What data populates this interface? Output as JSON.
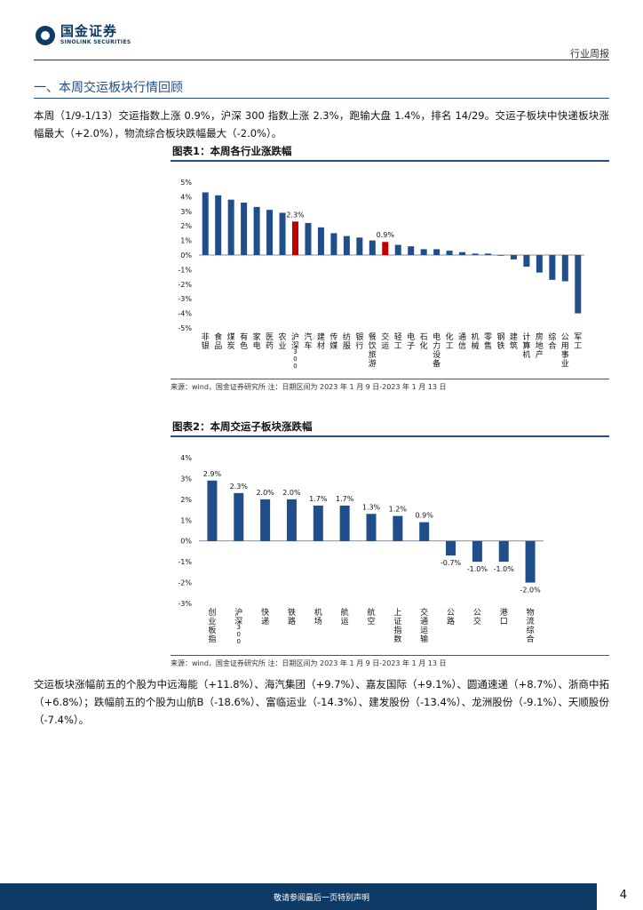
{
  "header": {
    "logo_cn": "国金证券",
    "logo_en": "SINOLINK SECURITIES",
    "doc_type": "行业周报"
  },
  "section": {
    "title": "一、本周交运板块行情回顾"
  },
  "paragraphs": {
    "p1": "本周（1/9-1/13）交运指数上涨 0.9%，沪深 300 指数上涨 2.3%，跑输大盘 1.4%，排名 14/29。交运子板块中快递板块涨幅最大（+2.0%），物流综合板块跌幅最大（-2.0%）。",
    "p2": "交运板块涨幅前五的个股为中远海能（+11.8%）、海汽集团（+9.7%）、嘉友国际（+9.1%）、圆通速递（+8.7%）、浙商中拓（+6.8%）；跌幅前五的个股为山航B（-18.6%）、富临运业（-14.3%）、建发股份（-13.4%）、龙洲股份（-9.1%）、天顺股份（-7.4%）。"
  },
  "figure1": {
    "title": "图表1：本周各行业涨跌幅",
    "source": "来源：wind，国金证券研究所   注：日期区间为 2023 年 1 月 9 日-2023 年 1 月 13 日"
  },
  "figure2": {
    "title": "图表2：本周交运子板块涨跌幅",
    "source": "来源：wind，国金证券研究所   注：日期区间为 2023 年 1 月 9 日-2023 年 1 月 13 日"
  },
  "footer": {
    "disclaimer": "敬请参阅最后一页特别声明",
    "page": "4"
  },
  "colors": {
    "bar": "#1f4e8a",
    "highlight": "#c00000",
    "accent": "#0d3b66"
  },
  "chart_data": [
    {
      "type": "bar",
      "categories": [
        "非银",
        "食品",
        "煤炭",
        "有色",
        "家电",
        "医药",
        "农业",
        "沪深300",
        "汽车",
        "建材",
        "传媒",
        "纺服",
        "银行",
        "餐饮旅游",
        "交运",
        "轻工",
        "电子",
        "石化",
        "电力设备",
        "化工",
        "通信",
        "机械",
        "零售",
        "钢铁",
        "建筑",
        "计算机",
        "房地产",
        "综合",
        "公用事业",
        "军工"
      ],
      "values": [
        4.3,
        4.1,
        3.8,
        3.6,
        3.3,
        3.1,
        2.9,
        2.3,
        2.2,
        1.9,
        1.5,
        1.3,
        1.2,
        1.0,
        0.9,
        0.7,
        0.6,
        0.4,
        0.4,
        0.3,
        0.2,
        0.1,
        0.1,
        0.0,
        -0.3,
        -0.8,
        -1.2,
        -1.7,
        -1.8,
        -4.0
      ],
      "highlighted": [
        "沪深300",
        "交运"
      ],
      "data_labels": {
        "沪深300": "2.3%",
        "交运": "0.9%"
      },
      "yticks": [
        "5%",
        "4%",
        "3%",
        "2%",
        "1%",
        "0%",
        "-1%",
        "-2%",
        "-3%",
        "-4%",
        "-5%"
      ],
      "ylim": [
        -5,
        5
      ]
    },
    {
      "type": "bar",
      "categories": [
        "创业板指",
        "沪深300",
        "快递",
        "铁路",
        "机场",
        "航运",
        "航空",
        "上证指数",
        "交通运输",
        "公路",
        "公交",
        "港口",
        "物流综合"
      ],
      "values": [
        2.9,
        2.3,
        2.0,
        2.0,
        1.7,
        1.7,
        1.3,
        1.2,
        0.9,
        -0.7,
        -1.0,
        -1.0,
        -2.0
      ],
      "data_labels": [
        "2.9%",
        "2.3%",
        "2.0%",
        "2.0%",
        "1.7%",
        "1.7%",
        "1.3%",
        "1.2%",
        "0.9%",
        "-0.7%",
        "-1.0%",
        "-1.0%",
        "-2.0%"
      ],
      "yticks": [
        "4%",
        "3%",
        "2%",
        "1%",
        "0%",
        "-1%",
        "-2%",
        "-3%"
      ],
      "ylim": [
        -3,
        4
      ]
    }
  ]
}
